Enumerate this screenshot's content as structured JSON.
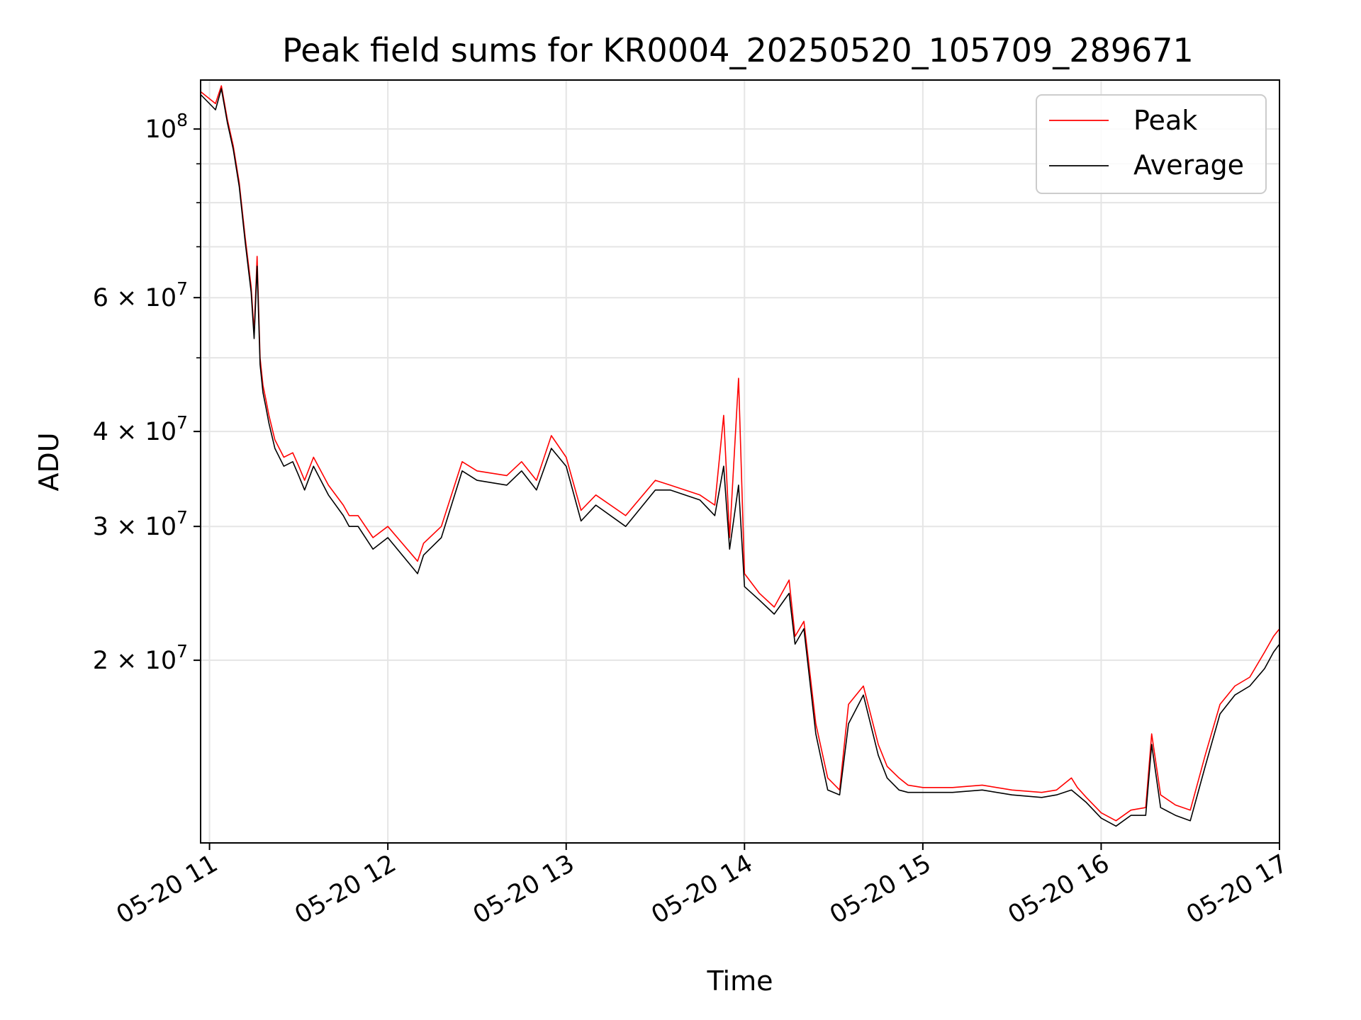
{
  "chart_data": {
    "type": "line",
    "title": "Peak field sums for KR0004_20250520_105709_289671",
    "xlabel": "Time",
    "ylabel": "ADU",
    "yscale": "log",
    "ylim": [
      11500000,
      116000000
    ],
    "xlim": [
      "2025-05-20 10:57",
      "2025-05-20 17:00"
    ],
    "grid": true,
    "legend_position": "top-right",
    "x_ticks": [
      {
        "t": "2025-05-20 11:00",
        "label": "05-20 11"
      },
      {
        "t": "2025-05-20 12:00",
        "label": "05-20 12"
      },
      {
        "t": "2025-05-20 13:00",
        "label": "05-20 13"
      },
      {
        "t": "2025-05-20 14:00",
        "label": "05-20 14"
      },
      {
        "t": "2025-05-20 15:00",
        "label": "05-20 15"
      },
      {
        "t": "2025-05-20 16:00",
        "label": "05-20 16"
      },
      {
        "t": "2025-05-20 17:00",
        "label": "05-20 17"
      }
    ],
    "y_ticks_major": [
      {
        "v": 20000000,
        "mantissa": "2",
        "exp": "7"
      },
      {
        "v": 30000000,
        "mantissa": "3",
        "exp": "7"
      },
      {
        "v": 40000000,
        "mantissa": "4",
        "exp": "7"
      },
      {
        "v": 60000000,
        "mantissa": "6",
        "exp": "7"
      },
      {
        "v": 100000000,
        "mantissa": "",
        "exp": "8"
      }
    ],
    "y_ticks_minor": [
      50000000,
      70000000,
      80000000,
      90000000
    ],
    "series": [
      {
        "name": "Peak",
        "color": "#ff0000",
        "x": [
          "2025-05-20 10:57",
          "2025-05-20 11:02",
          "2025-05-20 11:04",
          "2025-05-20 11:06",
          "2025-05-20 11:08",
          "2025-05-20 11:10",
          "2025-05-20 11:12",
          "2025-05-20 11:14",
          "2025-05-20 11:15",
          "2025-05-20 11:16",
          "2025-05-20 11:17",
          "2025-05-20 11:18",
          "2025-05-20 11:19",
          "2025-05-20 11:20",
          "2025-05-20 11:22",
          "2025-05-20 11:25",
          "2025-05-20 11:28",
          "2025-05-20 11:30",
          "2025-05-20 11:32",
          "2025-05-20 11:35",
          "2025-05-20 11:40",
          "2025-05-20 11:45",
          "2025-05-20 11:47",
          "2025-05-20 11:50",
          "2025-05-20 11:55",
          "2025-05-20 12:00",
          "2025-05-20 12:10",
          "2025-05-20 12:12",
          "2025-05-20 12:18",
          "2025-05-20 12:25",
          "2025-05-20 12:30",
          "2025-05-20 12:40",
          "2025-05-20 12:45",
          "2025-05-20 12:50",
          "2025-05-20 12:55",
          "2025-05-20 13:00",
          "2025-05-20 13:05",
          "2025-05-20 13:10",
          "2025-05-20 13:20",
          "2025-05-20 13:30",
          "2025-05-20 13:35",
          "2025-05-20 13:45",
          "2025-05-20 13:50",
          "2025-05-20 13:53",
          "2025-05-20 13:55",
          "2025-05-20 13:58",
          "2025-05-20 14:00",
          "2025-05-20 14:05",
          "2025-05-20 14:10",
          "2025-05-20 14:15",
          "2025-05-20 14:17",
          "2025-05-20 14:20",
          "2025-05-20 14:24",
          "2025-05-20 14:28",
          "2025-05-20 14:32",
          "2025-05-20 14:35",
          "2025-05-20 14:40",
          "2025-05-20 14:45",
          "2025-05-20 14:48",
          "2025-05-20 14:52",
          "2025-05-20 14:55",
          "2025-05-20 15:00",
          "2025-05-20 15:10",
          "2025-05-20 15:20",
          "2025-05-20 15:30",
          "2025-05-20 15:40",
          "2025-05-20 15:45",
          "2025-05-20 15:50",
          "2025-05-20 15:52",
          "2025-05-20 15:55",
          "2025-05-20 16:00",
          "2025-05-20 16:05",
          "2025-05-20 16:10",
          "2025-05-20 16:15",
          "2025-05-20 16:17",
          "2025-05-20 16:20",
          "2025-05-20 16:25",
          "2025-05-20 16:30",
          "2025-05-20 16:35",
          "2025-05-20 16:40",
          "2025-05-20 16:45",
          "2025-05-20 16:50",
          "2025-05-20 16:55",
          "2025-05-20 16:58",
          "2025-05-20 17:00"
        ],
        "y": [
          112000000,
          108000000,
          114000000,
          103000000,
          95000000,
          85000000,
          72000000,
          62000000,
          54000000,
          68000000,
          50000000,
          46000000,
          44000000,
          42000000,
          39000000,
          37000000,
          37500000,
          36000000,
          34500000,
          37000000,
          34000000,
          32000000,
          31000000,
          31000000,
          29000000,
          30000000,
          27000000,
          28500000,
          30000000,
          36500000,
          35500000,
          35000000,
          36500000,
          34500000,
          39500000,
          37000000,
          31500000,
          33000000,
          31000000,
          34500000,
          34000000,
          33000000,
          32000000,
          42000000,
          29000000,
          47000000,
          26000000,
          24500000,
          23500000,
          25500000,
          21500000,
          22500000,
          16500000,
          14000000,
          13500000,
          17500000,
          18500000,
          15500000,
          14500000,
          14000000,
          13700000,
          13600000,
          13600000,
          13700000,
          13500000,
          13400000,
          13500000,
          14000000,
          13600000,
          13200000,
          12600000,
          12300000,
          12700000,
          12800000,
          16000000,
          13300000,
          12900000,
          12700000,
          15000000,
          17500000,
          18500000,
          19000000,
          20500000,
          21500000,
          22000000
        ]
      },
      {
        "name": "Average",
        "color": "#000000",
        "x": [
          "2025-05-20 10:57",
          "2025-05-20 11:02",
          "2025-05-20 11:04",
          "2025-05-20 11:06",
          "2025-05-20 11:08",
          "2025-05-20 11:10",
          "2025-05-20 11:12",
          "2025-05-20 11:14",
          "2025-05-20 11:15",
          "2025-05-20 11:16",
          "2025-05-20 11:17",
          "2025-05-20 11:18",
          "2025-05-20 11:19",
          "2025-05-20 11:20",
          "2025-05-20 11:22",
          "2025-05-20 11:25",
          "2025-05-20 11:28",
          "2025-05-20 11:30",
          "2025-05-20 11:32",
          "2025-05-20 11:35",
          "2025-05-20 11:40",
          "2025-05-20 11:45",
          "2025-05-20 11:47",
          "2025-05-20 11:50",
          "2025-05-20 11:55",
          "2025-05-20 12:00",
          "2025-05-20 12:10",
          "2025-05-20 12:12",
          "2025-05-20 12:18",
          "2025-05-20 12:25",
          "2025-05-20 12:30",
          "2025-05-20 12:40",
          "2025-05-20 12:45",
          "2025-05-20 12:50",
          "2025-05-20 12:55",
          "2025-05-20 13:00",
          "2025-05-20 13:05",
          "2025-05-20 13:10",
          "2025-05-20 13:20",
          "2025-05-20 13:30",
          "2025-05-20 13:35",
          "2025-05-20 13:45",
          "2025-05-20 13:50",
          "2025-05-20 13:53",
          "2025-05-20 13:55",
          "2025-05-20 13:58",
          "2025-05-20 14:00",
          "2025-05-20 14:05",
          "2025-05-20 14:10",
          "2025-05-20 14:15",
          "2025-05-20 14:17",
          "2025-05-20 14:20",
          "2025-05-20 14:24",
          "2025-05-20 14:28",
          "2025-05-20 14:32",
          "2025-05-20 14:35",
          "2025-05-20 14:40",
          "2025-05-20 14:45",
          "2025-05-20 14:48",
          "2025-05-20 14:52",
          "2025-05-20 14:55",
          "2025-05-20 15:00",
          "2025-05-20 15:10",
          "2025-05-20 15:20",
          "2025-05-20 15:30",
          "2025-05-20 15:40",
          "2025-05-20 15:45",
          "2025-05-20 15:50",
          "2025-05-20 15:52",
          "2025-05-20 15:55",
          "2025-05-20 16:00",
          "2025-05-20 16:05",
          "2025-05-20 16:10",
          "2025-05-20 16:15",
          "2025-05-20 16:17",
          "2025-05-20 16:20",
          "2025-05-20 16:25",
          "2025-05-20 16:30",
          "2025-05-20 16:35",
          "2025-05-20 16:40",
          "2025-05-20 16:45",
          "2025-05-20 16:50",
          "2025-05-20 16:55",
          "2025-05-20 16:58",
          "2025-05-20 17:00"
        ],
        "y": [
          111000000,
          106000000,
          113000000,
          102000000,
          94000000,
          84000000,
          71000000,
          61000000,
          53000000,
          66000000,
          49000000,
          45000000,
          43000000,
          41000000,
          38000000,
          36000000,
          36500000,
          35000000,
          33500000,
          36000000,
          33000000,
          31000000,
          30000000,
          30000000,
          28000000,
          29000000,
          26000000,
          27500000,
          29000000,
          35500000,
          34500000,
          34000000,
          35500000,
          33500000,
          38000000,
          36000000,
          30500000,
          32000000,
          30000000,
          33500000,
          33500000,
          32500000,
          31000000,
          36000000,
          28000000,
          34000000,
          25000000,
          24000000,
          23000000,
          24500000,
          21000000,
          22000000,
          16000000,
          13500000,
          13300000,
          16500000,
          18000000,
          15000000,
          14000000,
          13500000,
          13400000,
          13400000,
          13400000,
          13500000,
          13300000,
          13200000,
          13300000,
          13500000,
          13300000,
          13000000,
          12400000,
          12100000,
          12500000,
          12500000,
          15500000,
          12800000,
          12500000,
          12300000,
          14500000,
          17000000,
          18000000,
          18500000,
          19500000,
          20500000,
          21000000
        ]
      }
    ]
  }
}
